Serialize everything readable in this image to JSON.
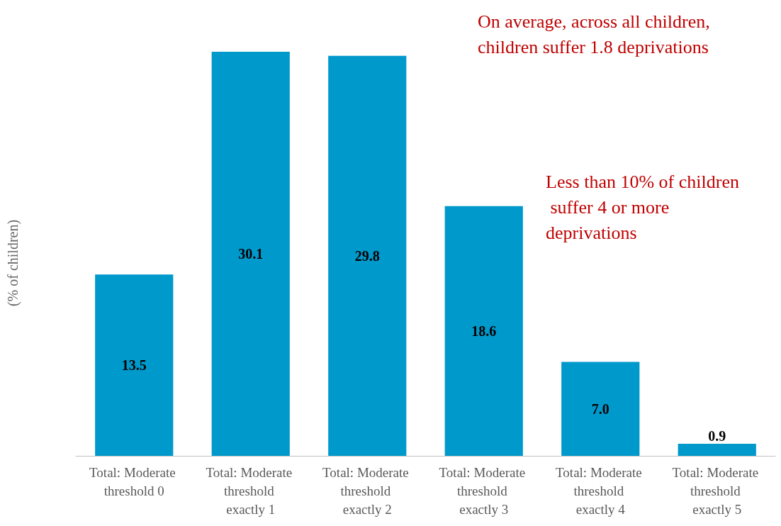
{
  "chart_data": {
    "type": "bar",
    "ylabel": "(% of children)",
    "categories": [
      "Total: Moderate threshold 0",
      "Total: Moderate threshold exactly 1",
      "Total: Moderate threshold exactly 2",
      "Total: Moderate threshold exactly 3",
      "Total: Moderate threshold exactly 4",
      "Total: Moderate threshold exactly 5"
    ],
    "values": [
      13.5,
      30.1,
      29.8,
      18.6,
      7.0,
      0.9
    ],
    "color": "#0099cc",
    "value_labels": [
      "13.5",
      "30.1",
      "29.8",
      "18.6",
      "7.0",
      "0.9"
    ],
    "grid": false,
    "annotations": [
      "On average, across all children, children suffer 1.8 deprivations",
      "Less than 10% of children suffer 4 or more deprivations"
    ]
  }
}
